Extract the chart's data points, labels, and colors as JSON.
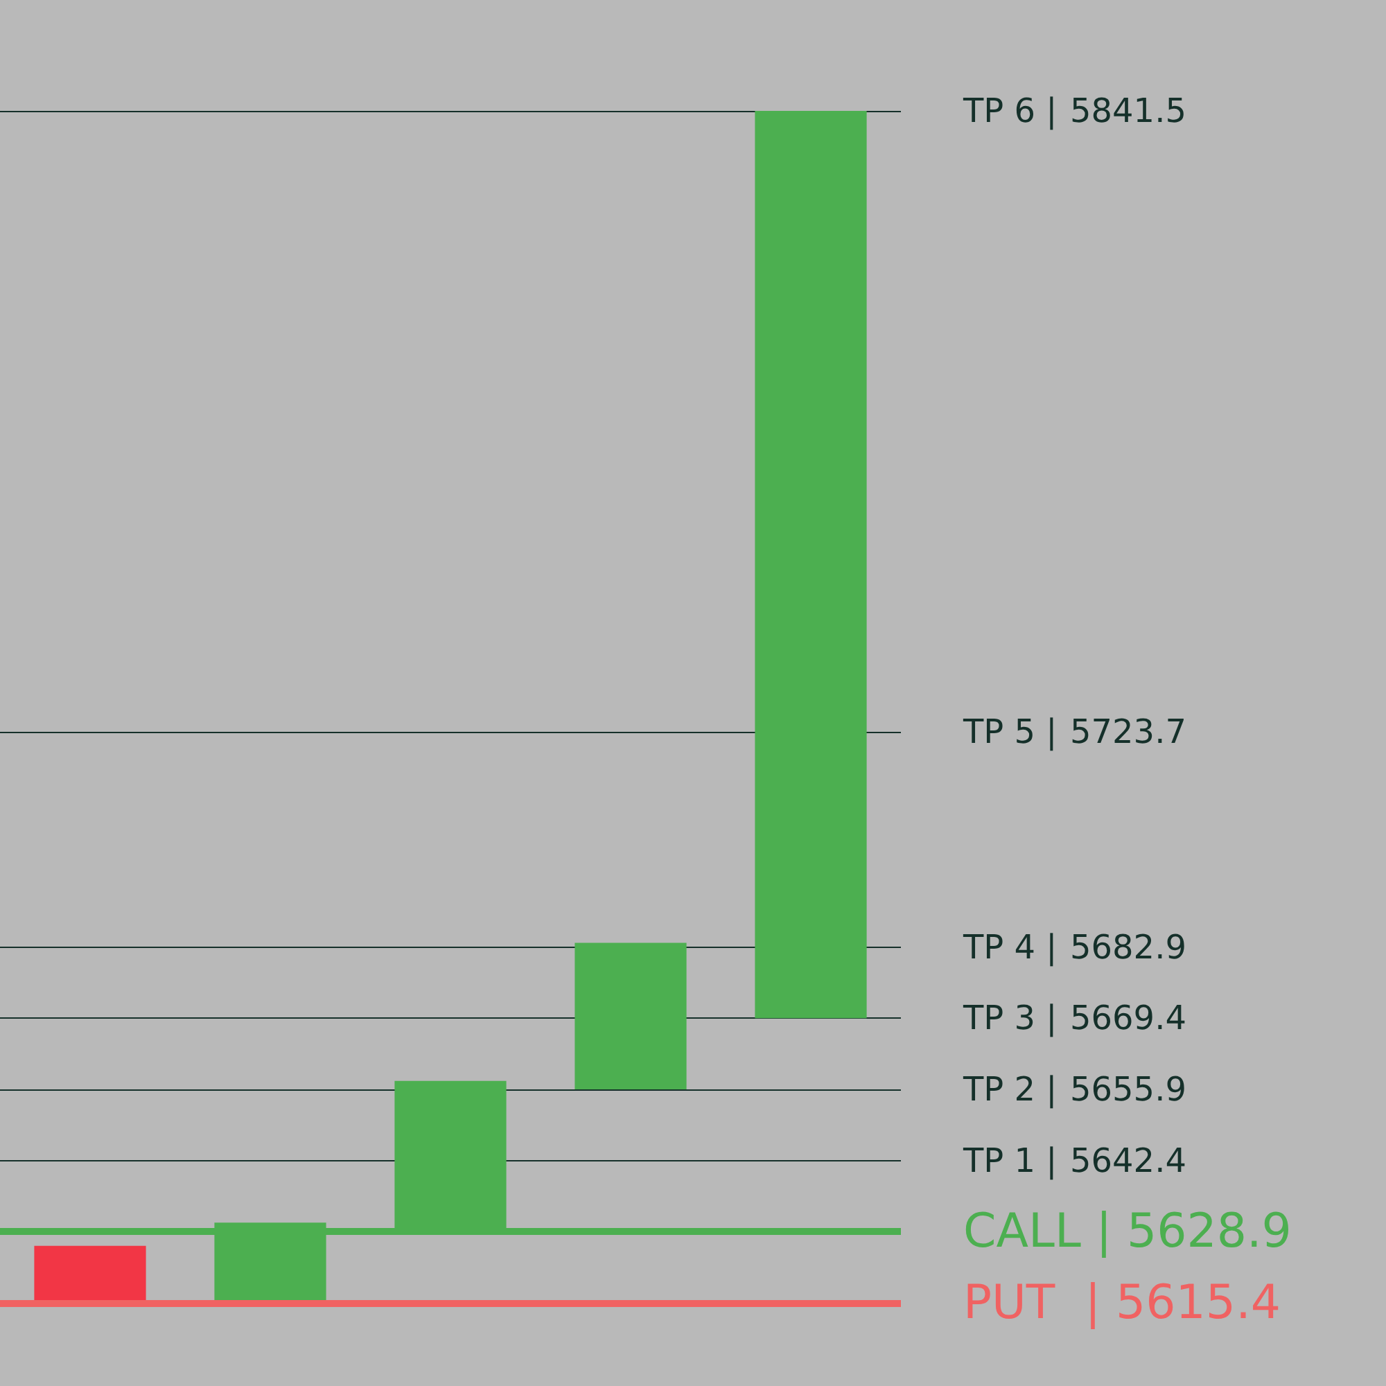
{
  "chart_data": {
    "type": "bar",
    "categories": [
      null,
      null,
      null,
      null,
      null
    ],
    "base": [
      5615.4,
      5615.4,
      5628.9,
      5655.9,
      5669.4
    ],
    "values": [
      10.8,
      15.2,
      28.6,
      27.8,
      172.1
    ],
    "colors": [
      "#f23645",
      "#4caf50",
      "#4caf50",
      "#4caf50",
      "#4caf50"
    ],
    "ylim": [
      5615.4,
      5841.5
    ],
    "yticks": [
      5642.4,
      5655.9,
      5669.4,
      5682.9,
      5723.7,
      5841.5
    ],
    "annotations": [
      "TP 1 |",
      "TP 2 |",
      "TP 3 |",
      "TP 4 |",
      "TP 5 |",
      "TP 6 |"
    ],
    "tick_labels": "y",
    "grid": "y",
    "ref_lines": [
      {
        "axis": "y",
        "value": 5628.9,
        "label": "CALL | 5628.9",
        "color": "#4caf50"
      },
      {
        "axis": "y",
        "value": 5615.4,
        "label": "PUT  | 5615.4",
        "color": "#f06262"
      }
    ]
  }
}
